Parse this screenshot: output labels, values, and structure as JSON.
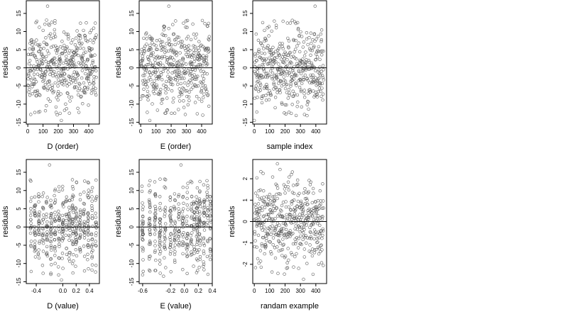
{
  "style": {
    "point_color": "#5a5a5a",
    "line_color": "#000000",
    "background": "#ffffff"
  },
  "chart_data": [
    {
      "type": "scatter",
      "n_points": 450,
      "xlabel": "D (order)",
      "ylabel": "residuals",
      "xlim": [
        -10,
        470
      ],
      "ylim": [
        -15.5,
        18.5
      ],
      "xticks": [
        0,
        100,
        200,
        300,
        400
      ],
      "xtick_labels": [
        "0",
        "100",
        "200",
        "300",
        "400"
      ],
      "yticks": [
        -15,
        -10,
        -5,
        0,
        5,
        10,
        15
      ],
      "ytick_labels": [
        "-15",
        "-10",
        "-5",
        "0",
        "5",
        "10",
        "15"
      ],
      "hline": 0,
      "x_kind": "index",
      "y_sd": 5.5,
      "extremes": [
        {
          "x": 130,
          "y": 17
        },
        {
          "x": 220,
          "y": -14.5
        }
      ],
      "seed": 11
    },
    {
      "type": "scatter",
      "n_points": 450,
      "xlabel": "E (order)",
      "ylabel": "residuals",
      "xlim": [
        -10,
        470
      ],
      "ylim": [
        -15.5,
        18.5
      ],
      "xticks": [
        0,
        100,
        200,
        300,
        400
      ],
      "xtick_labels": [
        "0",
        "100",
        "200",
        "300",
        "400"
      ],
      "yticks": [
        -15,
        -10,
        -5,
        0,
        5,
        10,
        15
      ],
      "ytick_labels": [
        "-15",
        "-10",
        "-5",
        "0",
        "5",
        "10",
        "15"
      ],
      "hline": 0,
      "x_kind": "index",
      "y_sd": 5.5,
      "extremes": [
        {
          "x": 185,
          "y": 17
        },
        {
          "x": 60,
          "y": -14.5
        }
      ],
      "seed": 23
    },
    {
      "type": "scatter",
      "n_points": 450,
      "xlabel": "sample index",
      "ylabel": "residuals",
      "xlim": [
        -10,
        470
      ],
      "ylim": [
        -15.5,
        18.5
      ],
      "xticks": [
        0,
        100,
        200,
        300,
        400
      ],
      "xtick_labels": [
        "0",
        "100",
        "200",
        "300",
        "400"
      ],
      "yticks": [
        -15,
        -10,
        -5,
        0,
        5,
        10,
        15
      ],
      "ytick_labels": [
        "-15",
        "-10",
        "-5",
        "0",
        "5",
        "10",
        "15"
      ],
      "hline": 0,
      "x_kind": "index",
      "y_sd": 5.5,
      "extremes": [
        {
          "x": 395,
          "y": 17
        },
        {
          "x": 0,
          "y": -14.5
        }
      ],
      "seed": 37
    },
    {
      "type": "scatter",
      "n_points": 450,
      "xlabel": "D (value)",
      "ylabel": "residuals",
      "xlim": [
        -0.55,
        0.55
      ],
      "ylim": [
        -15.5,
        18.5
      ],
      "xticks": [
        -0.4,
        0,
        0.2,
        0.4
      ],
      "xtick_labels": [
        "-0.4",
        "0.0",
        "0.2",
        "0.4"
      ],
      "yticks": [
        -15,
        -10,
        -5,
        0,
        5,
        10,
        15
      ],
      "ytick_labels": [
        "-15",
        "-10",
        "-5",
        "0",
        "5",
        "10",
        "15"
      ],
      "hline": 0,
      "x_kind": "clustered",
      "x_clusters": [
        -0.48,
        -0.42,
        -0.36,
        -0.3,
        -0.24,
        -0.18,
        -0.12,
        -0.06,
        0.0,
        0.05,
        0.1,
        0.15,
        0.2,
        0.26,
        0.32,
        0.38,
        0.44,
        0.5
      ],
      "y_sd": 5.5,
      "extremes": [
        {
          "x": -0.2,
          "y": 17
        },
        {
          "x": -0.02,
          "y": -14.5
        }
      ],
      "seed": 41
    },
    {
      "type": "scatter",
      "n_points": 450,
      "xlabel": "E (value)",
      "ylabel": "residuals",
      "xlim": [
        -0.65,
        0.4
      ],
      "ylim": [
        -15.5,
        18.5
      ],
      "xticks": [
        -0.6,
        -0.2,
        0,
        0.2,
        0.4
      ],
      "xtick_labels": [
        "-0.6",
        "-0.2",
        "0.0",
        "0.2",
        "0.4"
      ],
      "yticks": [
        -15,
        -10,
        -5,
        0,
        5,
        10,
        15
      ],
      "ytick_labels": [
        "-15",
        "-10",
        "-5",
        "0",
        "5",
        "10",
        "15"
      ],
      "hline": 0,
      "x_kind": "clustered",
      "x_clusters": [
        -0.6,
        -0.5,
        -0.42,
        -0.35,
        -0.28,
        -0.2,
        -0.14,
        -0.08,
        -0.02,
        0.04,
        0.1,
        0.14,
        0.18,
        0.22,
        0.28,
        0.33,
        0.37
      ],
      "y_sd": 5.5,
      "extremes": [
        {
          "x": -0.05,
          "y": 17
        },
        {
          "x": -0.3,
          "y": -13.5
        }
      ],
      "seed": 53
    },
    {
      "type": "scatter",
      "n_points": 450,
      "xlabel": "randam example",
      "ylabel": "residuals",
      "xlim": [
        -10,
        470
      ],
      "ylim": [
        -2.9,
        2.9
      ],
      "xticks": [
        0,
        100,
        200,
        300,
        400
      ],
      "xtick_labels": [
        "0",
        "100",
        "200",
        "300",
        "400"
      ],
      "yticks": [
        -2,
        -1,
        0,
        1,
        2
      ],
      "ytick_labels": [
        "-2",
        "-1",
        "0",
        "1",
        "2"
      ],
      "hline": 0,
      "x_kind": "index",
      "y_sd": 1.0,
      "extremes": [
        {
          "x": 150,
          "y": 2.7
        },
        {
          "x": 320,
          "y": -2.7
        }
      ],
      "seed": 67
    }
  ]
}
